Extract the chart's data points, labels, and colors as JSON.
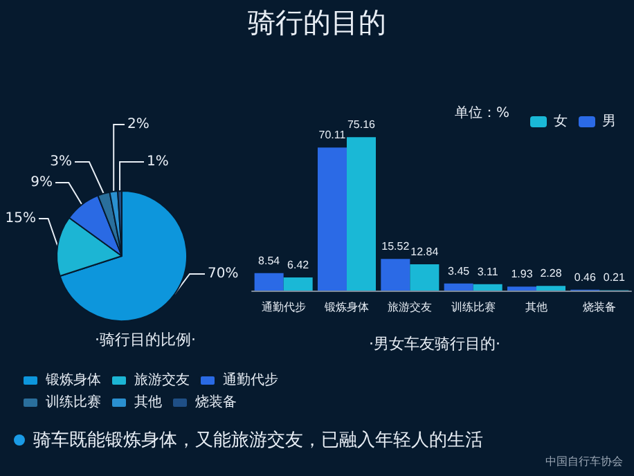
{
  "chart_data": [
    {
      "type": "pie",
      "subtitle": "·骑行目的比例·",
      "categories": [
        "锻炼身体",
        "旅游交友",
        "通勤代步",
        "训练比赛",
        "其他",
        "烧装备"
      ],
      "values": [
        70,
        15,
        9,
        3,
        2,
        1
      ],
      "colors": [
        "#0d96dc",
        "#1cb5d4",
        "#2a6ae4",
        "#2a6f9c",
        "#2a90d0",
        "#1f4f86"
      ],
      "legend": "bottom",
      "value_labels": [
        "70%",
        "15%",
        "9%",
        "3%",
        "2%",
        "1%"
      ],
      "annotations": [
        "骑车既能锻炼身体，又能旅游交友，已融入年轻人的生活",
        "中国自行车协会"
      ]
    },
    {
      "type": "bar",
      "title": "骑行的目的",
      "subtitle": "·男女车友骑行目的·",
      "legend_title": "单位：%",
      "categories": [
        "通勤代步",
        "锻炼身体",
        "旅游交友",
        "训练比赛",
        "其他",
        "烧装备"
      ],
      "series": [
        {
          "name": "男",
          "color": "#2b6ae6",
          "values": [
            8.54,
            70.11,
            15.52,
            3.45,
            1.93,
            0.46
          ]
        },
        {
          "name": "女",
          "color": "#1ab8d6",
          "values": [
            6.42,
            75.16,
            12.84,
            3.11,
            2.28,
            0.21
          ]
        }
      ],
      "legend": "top right",
      "data_labels": true
    }
  ]
}
